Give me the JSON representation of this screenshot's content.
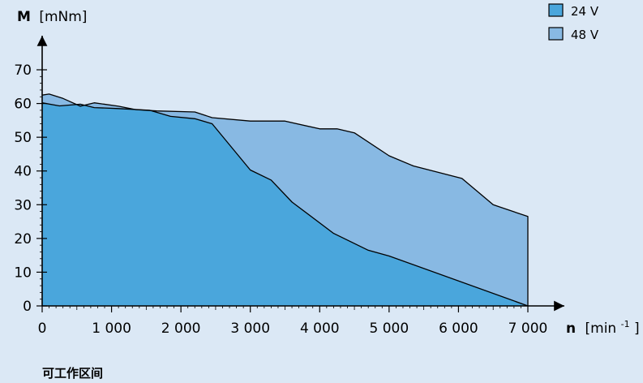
{
  "chart_data": {
    "type": "area",
    "y_axis_title": {
      "symbol": "M",
      "unit": "[mNm]"
    },
    "x_axis_title": {
      "symbol": "n",
      "unit_prefix": "[min",
      "unit_sup": "-1",
      "unit_suffix": "]"
    },
    "xlim": [
      0,
      7000
    ],
    "ylim": [
      0,
      70
    ],
    "x_ticks": [
      0,
      1000,
      2000,
      3000,
      4000,
      5000,
      6000,
      7000
    ],
    "x_tick_labels": [
      "0",
      "1 000",
      "2 000",
      "3 000",
      "4 000",
      "5 000",
      "6 000",
      "7 000"
    ],
    "y_ticks": [
      0,
      10,
      20,
      30,
      40,
      50,
      60,
      70
    ],
    "y_tick_labels": [
      "0",
      "10",
      "20",
      "30",
      "40",
      "50",
      "60",
      "70"
    ],
    "grid": false,
    "legend_position": "top-right",
    "series": [
      {
        "name": "48 V",
        "color": "#88b9e3",
        "x": [
          0,
          100,
          300,
          550,
          750,
          1100,
          1350,
          1650,
          2200,
          2450,
          3000,
          3500,
          4000,
          4250,
          4500,
          5000,
          5350,
          6050,
          6500,
          7000
        ],
        "y": [
          62.5,
          62.8,
          61.5,
          59.2,
          60.2,
          59.2,
          58.2,
          57.8,
          57.5,
          55.8,
          54.8,
          54.8,
          52.5,
          52.5,
          51.3,
          44.5,
          41.5,
          37.8,
          30.0,
          26.5
        ]
      },
      {
        "name": "24 V",
        "color": "#4aa6dc",
        "x": [
          0,
          250,
          550,
          750,
          1100,
          1550,
          1850,
          2200,
          2450,
          3000,
          3300,
          3600,
          4200,
          4700,
          5000,
          7000
        ],
        "y": [
          60.2,
          59.3,
          59.8,
          58.8,
          58.5,
          58.0,
          56.2,
          55.5,
          54.0,
          40.3,
          37.3,
          30.8,
          21.5,
          16.5,
          14.8,
          0
        ]
      }
    ]
  },
  "caption": "可工作区间"
}
